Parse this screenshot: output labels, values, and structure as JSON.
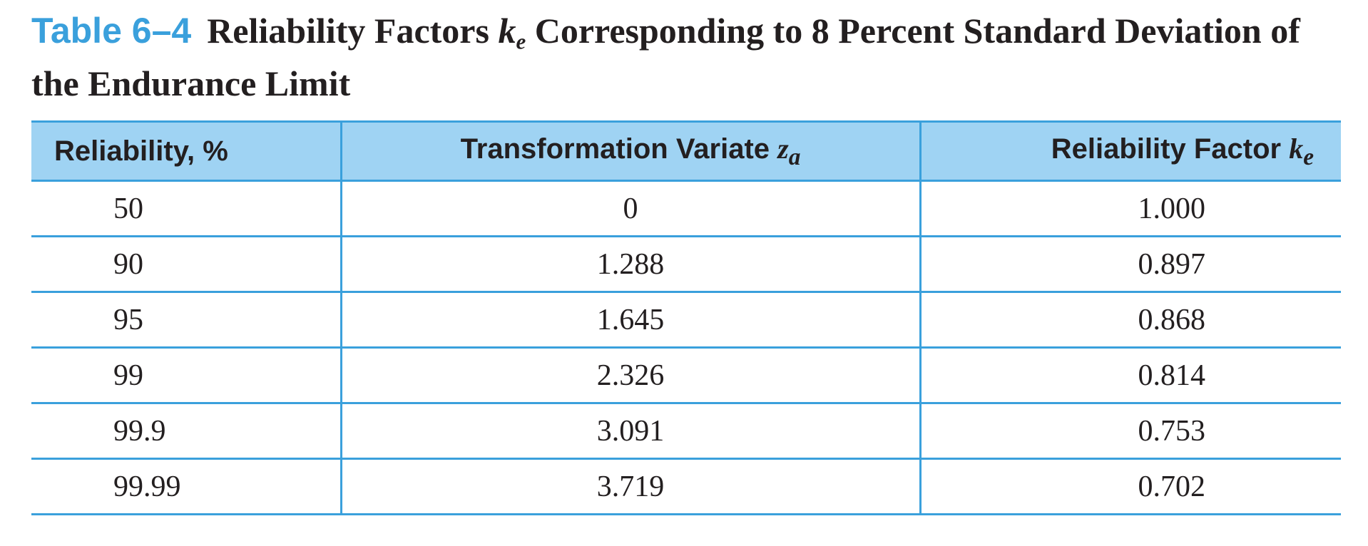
{
  "caption": {
    "table_number": "Table 6–4",
    "title_part1": "Reliability Factors",
    "title_symbol": "k",
    "title_symbol_sub": "e",
    "title_part2": "Corresponding to 8 Percent Standard Deviation of the Endurance Limit"
  },
  "table": {
    "headers": [
      {
        "text": "Reliability, %",
        "symbol": "",
        "sub": ""
      },
      {
        "text": "Transformation Variate",
        "symbol": "z",
        "sub": "a"
      },
      {
        "text": "Reliability Factor",
        "symbol": "k",
        "sub": "e"
      }
    ],
    "rows": [
      [
        "50",
        "0",
        "1.000"
      ],
      [
        "90",
        "1.288",
        "0.897"
      ],
      [
        "95",
        "1.645",
        "0.868"
      ],
      [
        "99",
        "2.326",
        "0.814"
      ],
      [
        "99.9",
        "3.091",
        "0.753"
      ],
      [
        "99.99",
        "3.719",
        "0.702"
      ]
    ]
  },
  "colors": {
    "accent": "#3aa0dc",
    "header_fill": "#9fd3f3",
    "text": "#231f20"
  }
}
